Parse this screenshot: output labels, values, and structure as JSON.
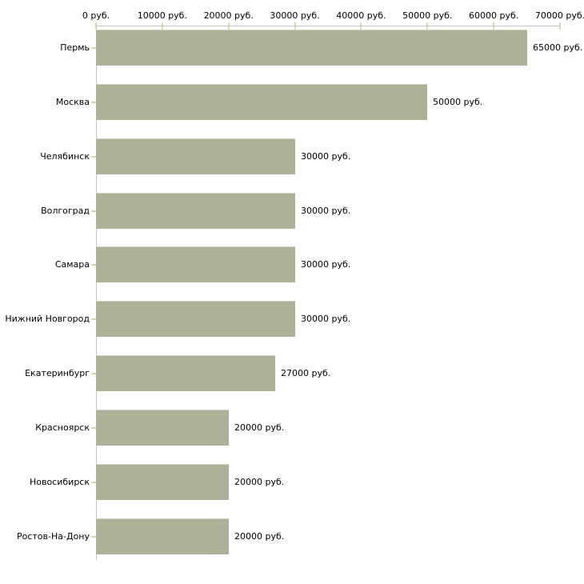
{
  "chart_data": {
    "type": "bar",
    "orientation": "horizontal",
    "title": "",
    "xlabel": "",
    "ylabel": "",
    "unit": "руб.",
    "categories": [
      "Пермь",
      "Москва",
      "Челябинск",
      "Волгоград",
      "Самара",
      "Нижний Новгород",
      "Екатеринбург",
      "Красноярск",
      "Новосибирск",
      "Ростов-На-Дону"
    ],
    "values": [
      65000,
      50000,
      30000,
      30000,
      30000,
      30000,
      27000,
      20000,
      20000,
      20000
    ],
    "value_labels": [
      "65000 руб.",
      "50000 руб.",
      "30000 руб.",
      "30000 руб.",
      "30000 руб.",
      "30000 руб.",
      "27000 руб.",
      "20000 руб.",
      "20000 руб.",
      "20000 руб."
    ],
    "x_ticks": [
      0,
      10000,
      20000,
      30000,
      40000,
      50000,
      60000,
      70000
    ],
    "x_tick_labels": [
      "0 руб.",
      "10000 руб.",
      "20000 руб.",
      "30000 руб.",
      "40000 руб.",
      "50000 руб.",
      "60000 руб.",
      "70000 руб."
    ],
    "xlim": [
      0,
      70000
    ],
    "grid": false,
    "legend": false,
    "colors": {
      "bar": "#acb298",
      "axis": "#c4c4c4",
      "tick": "#d6d6b0",
      "text": "#000000",
      "background": "#ffffff"
    }
  }
}
